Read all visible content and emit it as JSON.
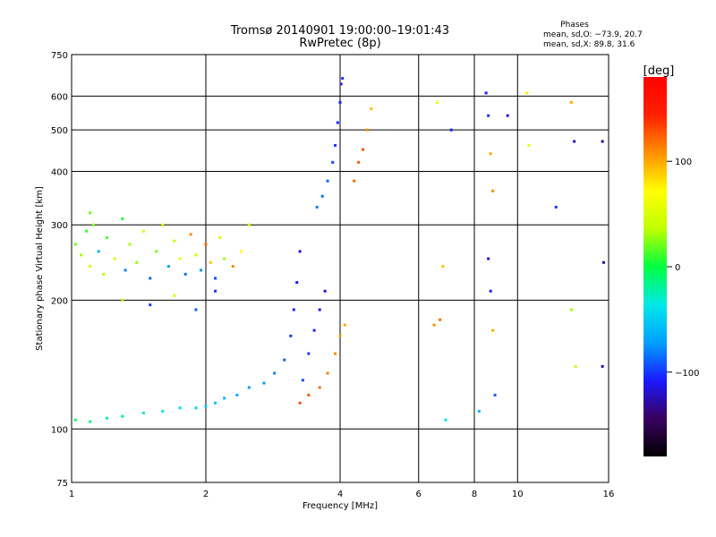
{
  "chart_data": {
    "type": "scatter",
    "title": "Tromsø 20140901 19:00:00–19:01:43",
    "subtitle": "RwPretec (8p)",
    "xlabel": "Frequency [MHz]",
    "ylabel": "Stationary phase Virtual Height [km]",
    "xscale": "log",
    "yscale": "log",
    "xlim": [
      1,
      16
    ],
    "ylim": [
      75,
      750
    ],
    "x_ticks": [
      1,
      2,
      4,
      6,
      8,
      10,
      16
    ],
    "y_ticks": [
      75,
      100,
      200,
      300,
      400,
      500,
      600,
      750
    ],
    "grid": true,
    "phase_stats": {
      "heading": "Phases",
      "line1": "mean, sd,O:  −73.9, 20.7",
      "line2": "mean, sd,X:  89.8, 31.6"
    },
    "colorbar": {
      "label": "[deg]",
      "range": [
        -180,
        180
      ],
      "ticks": [
        100,
        0,
        -100
      ],
      "tick_labels": [
        "100",
        "0",
        "−100"
      ],
      "colors": [
        "#000000",
        "#3a0060",
        "#1a1aff",
        "#00a0ff",
        "#00e8e8",
        "#00ff40",
        "#c0ff00",
        "#ffff00",
        "#ff9000",
        "#ff2000",
        "#ff0000"
      ]
    },
    "series": [
      {
        "description": "low-frequency E/F spread echoes",
        "points": [
          [
            1.02,
            270,
            20
          ],
          [
            1.05,
            255,
            30
          ],
          [
            1.08,
            290,
            10
          ],
          [
            1.1,
            240,
            40
          ],
          [
            1.12,
            300,
            25
          ],
          [
            1.15,
            260,
            -60
          ],
          [
            1.18,
            230,
            35
          ],
          [
            1.2,
            280,
            15
          ],
          [
            1.25,
            250,
            45
          ],
          [
            1.3,
            310,
            5
          ],
          [
            1.32,
            235,
            -80
          ],
          [
            1.35,
            270,
            30
          ],
          [
            1.4,
            245,
            25
          ],
          [
            1.45,
            290,
            50
          ],
          [
            1.5,
            225,
            -90
          ],
          [
            1.55,
            260,
            20
          ],
          [
            1.6,
            300,
            40
          ],
          [
            1.65,
            240,
            -70
          ],
          [
            1.7,
            275,
            35
          ],
          [
            1.75,
            250,
            60
          ],
          [
            1.8,
            230,
            -85
          ],
          [
            1.85,
            285,
            110
          ],
          [
            1.9,
            255,
            40
          ],
          [
            1.95,
            235,
            -75
          ],
          [
            2.0,
            270,
            120
          ],
          [
            2.05,
            245,
            90
          ],
          [
            2.1,
            225,
            -95
          ],
          [
            2.15,
            280,
            45
          ],
          [
            2.2,
            250,
            30
          ],
          [
            2.3,
            240,
            110
          ],
          [
            2.4,
            260,
            70
          ],
          [
            2.5,
            300,
            40
          ],
          [
            1.1,
            320,
            20
          ],
          [
            1.3,
            200,
            35
          ],
          [
            1.5,
            195,
            -100
          ],
          [
            1.7,
            205,
            45
          ],
          [
            1.9,
            190,
            -90
          ],
          [
            2.1,
            210,
            -100
          ]
        ]
      },
      {
        "description": "low E trace",
        "points": [
          [
            1.02,
            105,
            -10
          ],
          [
            1.1,
            104,
            -15
          ],
          [
            1.2,
            106,
            -20
          ],
          [
            1.3,
            107,
            -25
          ],
          [
            1.45,
            109,
            -30
          ],
          [
            1.6,
            110,
            -35
          ],
          [
            1.75,
            112,
            -40
          ],
          [
            1.9,
            112,
            -45
          ],
          [
            2.0,
            113,
            -50
          ],
          [
            2.1,
            115,
            -55
          ],
          [
            2.2,
            118,
            -60
          ],
          [
            2.35,
            120,
            -65
          ],
          [
            2.5,
            125,
            -70
          ],
          [
            2.7,
            128,
            -75
          ],
          [
            2.85,
            135,
            -80
          ],
          [
            3.0,
            145,
            -90
          ],
          [
            3.1,
            165,
            -100
          ],
          [
            3.15,
            190,
            -105
          ],
          [
            3.2,
            220,
            -110
          ],
          [
            3.25,
            260,
            -115
          ]
        ]
      },
      {
        "description": "F-region O trace",
        "points": [
          [
            3.3,
            130,
            -95
          ],
          [
            3.4,
            150,
            -100
          ],
          [
            3.5,
            170,
            -105
          ],
          [
            3.6,
            190,
            -110
          ],
          [
            3.7,
            210,
            -115
          ],
          [
            3.55,
            330,
            -80
          ],
          [
            3.65,
            350,
            -85
          ],
          [
            3.75,
            380,
            -90
          ],
          [
            3.85,
            420,
            -95
          ],
          [
            3.9,
            460,
            -100
          ],
          [
            3.95,
            520,
            -105
          ],
          [
            4.0,
            580,
            -110
          ],
          [
            4.02,
            640,
            -115
          ],
          [
            4.05,
            660,
            -100
          ]
        ]
      },
      {
        "description": "F-region X trace",
        "points": [
          [
            3.25,
            115,
            130
          ],
          [
            3.4,
            120,
            125
          ],
          [
            3.6,
            125,
            120
          ],
          [
            3.75,
            135,
            115
          ],
          [
            3.9,
            150,
            110
          ],
          [
            4.0,
            165,
            105
          ],
          [
            4.1,
            175,
            100
          ],
          [
            4.3,
            380,
            120
          ],
          [
            4.4,
            420,
            125
          ],
          [
            4.5,
            450,
            130
          ],
          [
            4.6,
            500,
            110
          ],
          [
            4.7,
            560,
            95
          ]
        ]
      }
    ],
    "sparse_points": [
      [
        6.6,
        580,
        60
      ],
      [
        7.1,
        500,
        -110
      ],
      [
        8.5,
        610,
        -110
      ],
      [
        8.6,
        540,
        -100
      ],
      [
        8.7,
        440,
        100
      ],
      [
        8.8,
        360,
        110
      ],
      [
        8.6,
        250,
        -120
      ],
      [
        8.7,
        210,
        -110
      ],
      [
        9.5,
        540,
        -120
      ],
      [
        10.5,
        610,
        80
      ],
      [
        10.6,
        460,
        60
      ],
      [
        12.2,
        330,
        -100
      ],
      [
        13.2,
        580,
        100
      ],
      [
        13.4,
        470,
        -120
      ],
      [
        15.5,
        470,
        -130
      ],
      [
        13.2,
        190,
        30
      ],
      [
        13.5,
        140,
        40
      ],
      [
        15.6,
        245,
        -130
      ],
      [
        15.5,
        140,
        -125
      ],
      [
        6.5,
        175,
        110
      ],
      [
        6.7,
        180,
        120
      ],
      [
        6.8,
        240,
        90
      ],
      [
        6.9,
        105,
        -30
      ],
      [
        8.8,
        170,
        100
      ],
      [
        8.2,
        110,
        -60
      ],
      [
        8.9,
        120,
        -90
      ]
    ]
  }
}
